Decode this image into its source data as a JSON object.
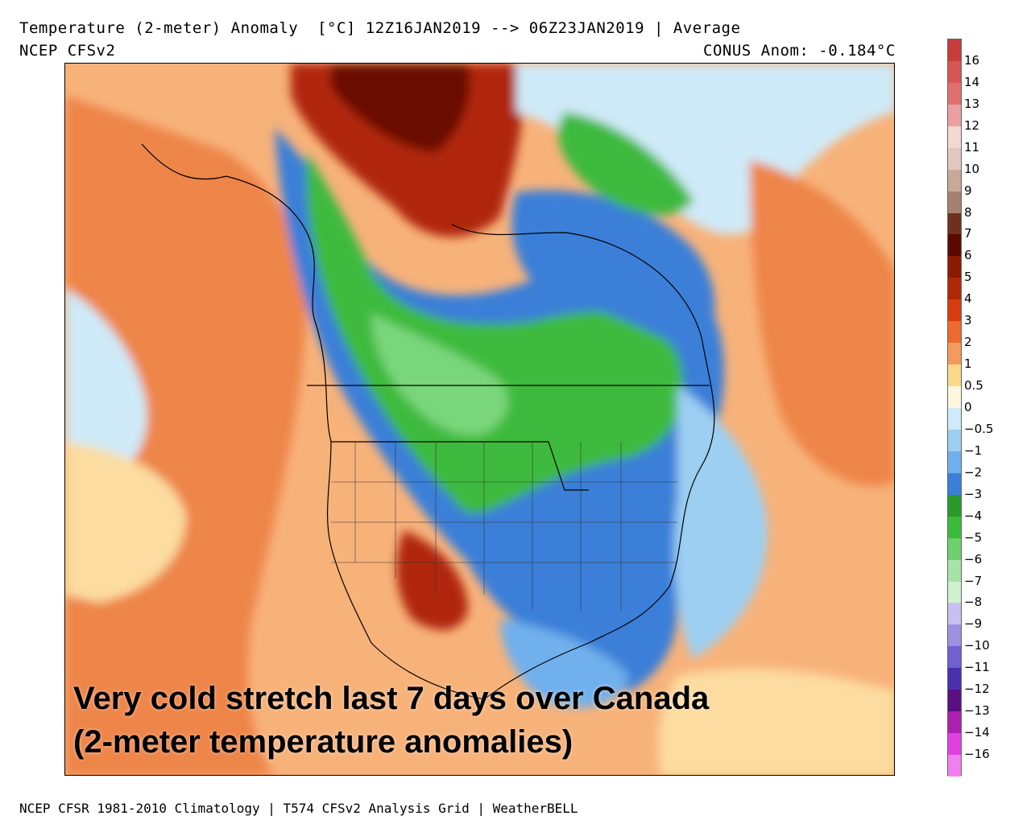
{
  "header": {
    "title": "Temperature (2-meter) Anomaly  [°C] 12Z16JAN2019 --> 06Z23JAN2019 | Average",
    "model": "NCEP CFSv2",
    "conus_anomaly": "CONUS Anom: -0.184°C"
  },
  "caption": {
    "line1": "Very cold stretch last 7 days over Canada",
    "line2": "(2-meter temperature anomalies)"
  },
  "footer": "NCEP CFSR 1981-2010 Climatology | T574 CFSv2 Analysis Grid | WeatherBELL",
  "legend": {
    "labels": [
      "16",
      "14",
      "13",
      "12",
      "11",
      "10",
      "9",
      "8",
      "7",
      "6",
      "5",
      "4",
      "3",
      "2",
      "1",
      "0.5",
      "0",
      "-0.5",
      "-1",
      "-2",
      "-3",
      "-4",
      "-5",
      "-6",
      "-7",
      "-8",
      "-9",
      "-10",
      "-11",
      "-12",
      "-13",
      "-14",
      "-16"
    ],
    "colors": [
      "#c83c3c",
      "#d85555",
      "#e07070",
      "#eaa0a0",
      "#f2d8d0",
      "#e0c8c0",
      "#c8a898",
      "#a88070",
      "#703020",
      "#5a0a00",
      "#8a1a00",
      "#b02808",
      "#d83c10",
      "#ee6a30",
      "#f49a5c",
      "#fbd98a",
      "#fff7e0",
      "#cfeaf8",
      "#9ccff2",
      "#6fb0ec",
      "#3b7fd8",
      "#2a9a2a",
      "#3cba3c",
      "#6ed06e",
      "#a6e4a6",
      "#d0f0d0",
      "#c8c0f0",
      "#a090e0",
      "#7060d0",
      "#4a30b0",
      "#5a1080",
      "#b020b0",
      "#e040e0",
      "#f080f0"
    ]
  },
  "map": {
    "colors": {
      "warm_light": "#fcdca0",
      "warm": "#f4a060",
      "warm_strong": "#e86a30",
      "hot": "#b02808",
      "very_hot": "#6a0c00",
      "cool_light": "#cfeaf8",
      "cool": "#6fb0ec",
      "cold": "#3b7fd8",
      "very_cold": "#3cba3c",
      "extreme_cold": "#7ad67a",
      "violet": "#a090e0"
    }
  }
}
